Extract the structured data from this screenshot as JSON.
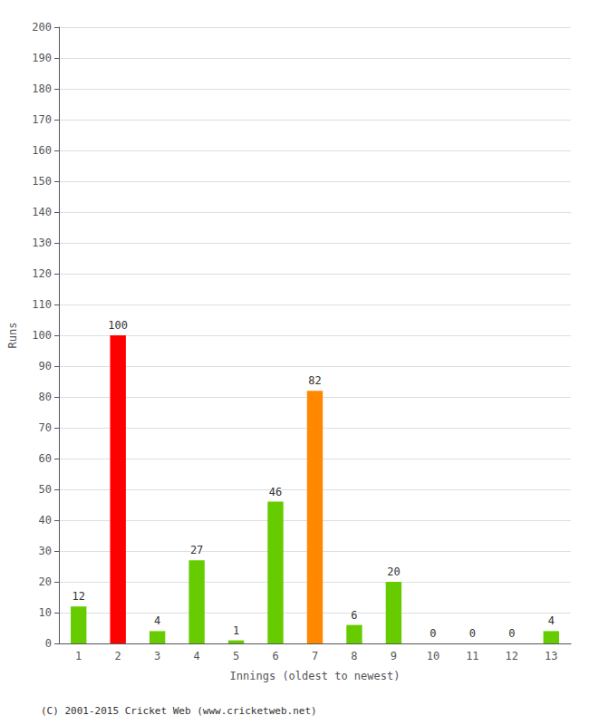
{
  "chart_data": {
    "type": "bar",
    "xlabel": "Innings (oldest to newest)",
    "ylabel": "Runs",
    "categories": [
      1,
      2,
      3,
      4,
      5,
      6,
      7,
      8,
      9,
      10,
      11,
      12,
      13
    ],
    "values": [
      12,
      100,
      4,
      27,
      1,
      46,
      82,
      6,
      20,
      0,
      0,
      0,
      4
    ],
    "colors": [
      "#66cc00",
      "#ff0000",
      "#66cc00",
      "#66cc00",
      "#66cc00",
      "#66cc00",
      "#ff8800",
      "#66cc00",
      "#66cc00",
      "#66cc00",
      "#66cc00",
      "#66cc00",
      "#66cc00"
    ],
    "ylim": [
      0,
      200
    ],
    "yticks": [
      0,
      10,
      20,
      30,
      40,
      50,
      60,
      70,
      80,
      90,
      100,
      110,
      120,
      130,
      140,
      150,
      160,
      170,
      180,
      190,
      200
    ],
    "grid": true,
    "data_labels": true,
    "annotations": [
      "(C) 2001-2015 Cricket Web (www.cricketweb.net)"
    ]
  }
}
